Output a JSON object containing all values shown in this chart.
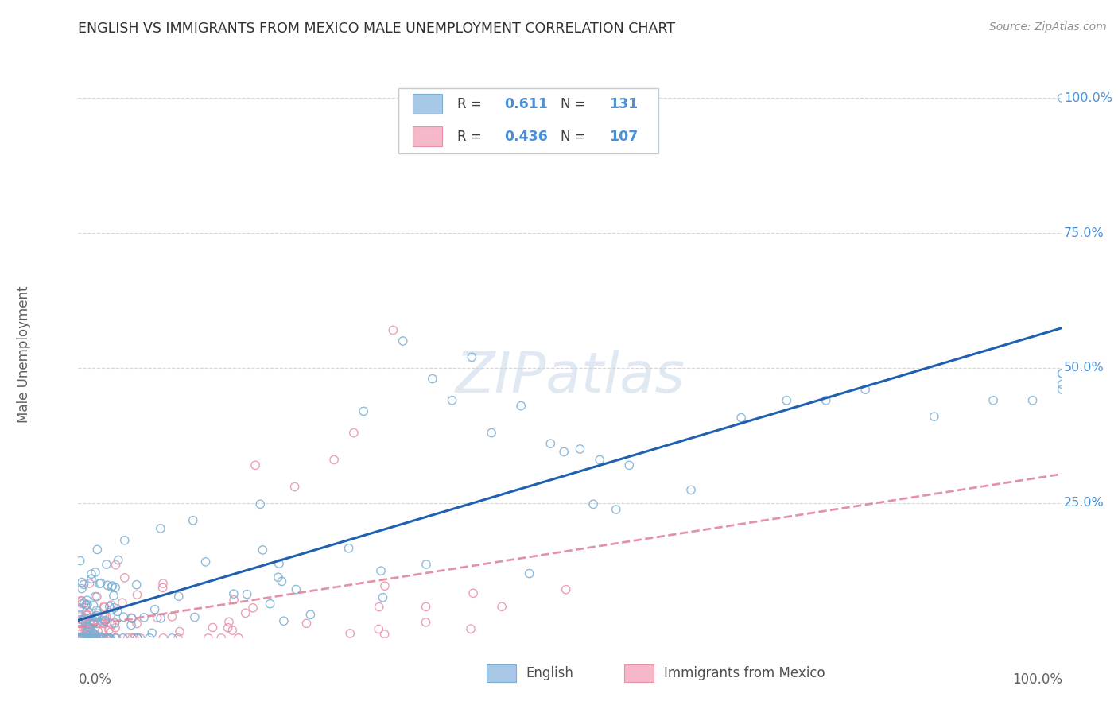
{
  "title": "ENGLISH VS IMMIGRANTS FROM MEXICO MALE UNEMPLOYMENT CORRELATION CHART",
  "source": "Source: ZipAtlas.com",
  "ylabel": "Male Unemployment",
  "legend_english_R": "0.611",
  "legend_english_N": "131",
  "legend_mexico_R": "0.436",
  "legend_mexico_N": "107",
  "english_color": "#a8c8e8",
  "english_edge_color": "#7aafd4",
  "mexico_color": "#f4b8c8",
  "mexico_edge_color": "#e890a8",
  "english_line_color": "#2060b0",
  "mexico_line_color": "#e08098",
  "watermark_color": "#d8e4f0",
  "title_color": "#303030",
  "source_color": "#909090",
  "ylabel_color": "#606060",
  "tick_label_color": "#4a90d9",
  "axis_label_color": "#606060",
  "grid_color": "#d0d8e0",
  "background_color": "#ffffff",
  "legend_edge_color": "#c0ccd8",
  "marker_size": 55,
  "marker_lw": 1.0
}
